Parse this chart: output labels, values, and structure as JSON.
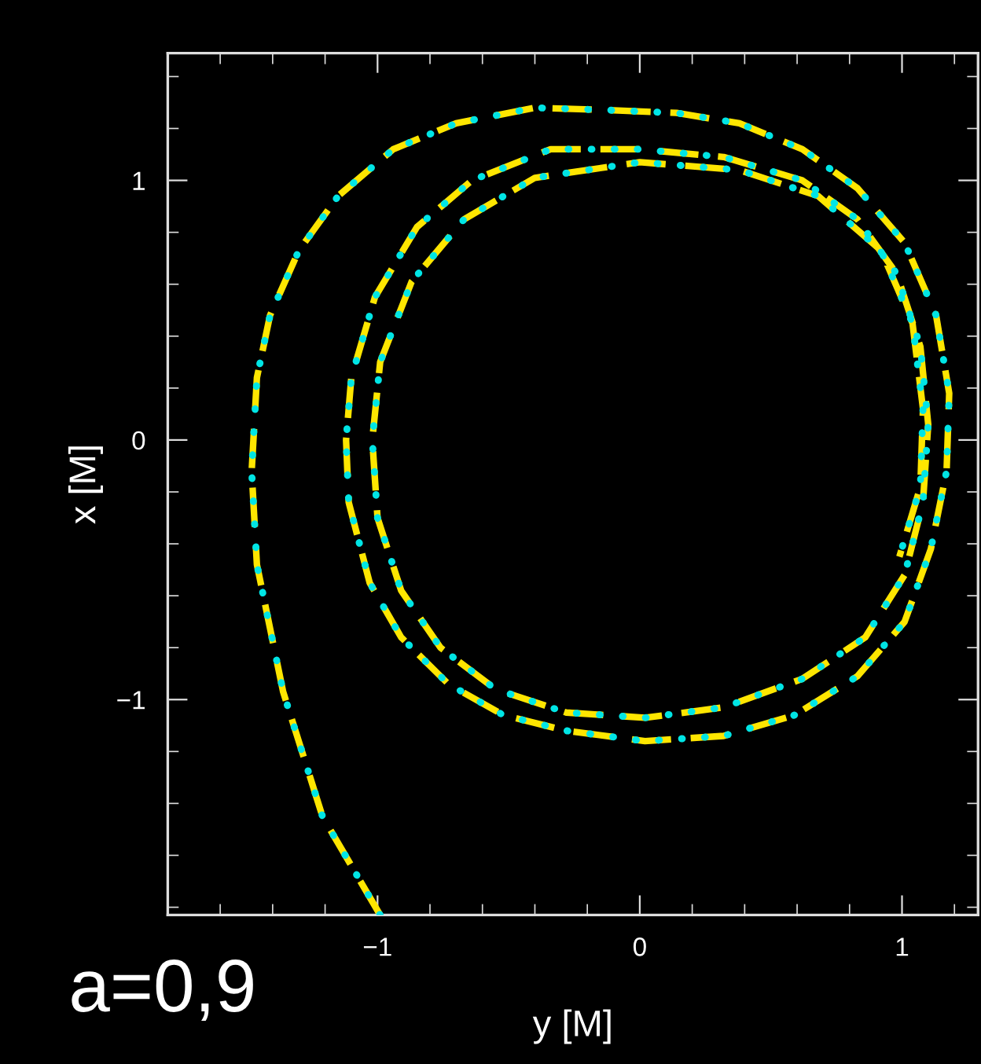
{
  "chart_data": {
    "type": "line",
    "xlabel": "y [M]",
    "ylabel": "x [M]",
    "annotations": [
      "a=0,9"
    ],
    "xlim": [
      -1.8,
      1.29
    ],
    "ylim": [
      -1.83,
      1.49
    ],
    "xticks": [
      {
        "value": -1.8,
        "label": null
      },
      {
        "value": -1.6,
        "label": null
      },
      {
        "value": -1.4,
        "label": null
      },
      {
        "value": -1.2,
        "label": null
      },
      -1,
      {
        "value": -0.8,
        "label": null
      },
      {
        "value": -0.6,
        "label": null
      },
      {
        "value": -0.4,
        "label": null
      },
      {
        "value": -0.2,
        "label": null
      },
      0,
      {
        "value": 0.2,
        "label": null
      },
      {
        "value": 0.4,
        "label": null
      },
      {
        "value": 0.6,
        "label": null
      },
      {
        "value": 0.8,
        "label": null
      },
      1,
      {
        "value": 1.2,
        "label": null
      }
    ],
    "yticks": [
      {
        "value": -1.8,
        "label": null
      },
      {
        "value": -1.6,
        "label": null
      },
      {
        "value": -1.4,
        "label": null
      },
      {
        "value": -1.2,
        "label": null
      },
      -1,
      {
        "value": -0.8,
        "label": null
      },
      {
        "value": -0.6,
        "label": null
      },
      {
        "value": -0.4,
        "label": null
      },
      {
        "value": -0.2,
        "label": null
      },
      0,
      {
        "value": 0.2,
        "label": null
      },
      {
        "value": 0.4,
        "label": null
      },
      {
        "value": 0.6,
        "label": null
      },
      {
        "value": 0.8,
        "label": null
      },
      1,
      {
        "value": 1.2,
        "label": null
      },
      {
        "value": 1.4,
        "label": null
      }
    ],
    "marker": "none",
    "series": [
      {
        "color": "#ffe600",
        "line_style": "dashed",
        "x": [
          -0.99,
          -1.21,
          -1.36,
          -1.46,
          -1.48,
          -1.46,
          -1.41,
          -1.3,
          -1.15,
          -0.94,
          -0.7,
          -0.4,
          -0.1,
          0.14,
          0.38,
          0.62,
          0.83,
          1.01,
          1.13,
          1.18,
          1.17,
          1.11,
          1.01,
          0.83,
          0.59,
          0.32,
          0.02,
          -0.28,
          -0.52,
          -0.73,
          -0.91,
          -1.03,
          -1.11,
          -1.12,
          -1.1,
          -1.01,
          -0.85,
          -0.64,
          -0.34,
          0,
          0.32,
          0.62,
          0.83,
          0.98,
          1.07,
          1.1,
          1.08,
          1.01,
          0.86,
          0.62,
          0.32,
          0.02,
          -0.28,
          -0.55,
          -0.76,
          -0.91,
          -1.0,
          -1.02,
          -0.99,
          -0.87,
          -0.67,
          -0.4,
          0,
          0.38,
          0.68,
          0.92,
          1.04,
          1.08,
          1.07,
          0.99
        ],
        "values": [
          -1.83,
          -1.45,
          -0.97,
          -0.48,
          -0.12,
          0.24,
          0.48,
          0.73,
          0.94,
          1.12,
          1.22,
          1.28,
          1.27,
          1.26,
          1.22,
          1.12,
          0.97,
          0.76,
          0.48,
          0.18,
          -0.12,
          -0.42,
          -0.7,
          -0.91,
          -1.06,
          -1.14,
          -1.16,
          -1.12,
          -1.06,
          -0.94,
          -0.76,
          -0.55,
          -0.24,
          0,
          0.24,
          0.55,
          0.82,
          1.0,
          1.12,
          1.12,
          1.09,
          1.0,
          0.85,
          0.64,
          0.36,
          0.06,
          -0.24,
          -0.52,
          -0.76,
          -0.92,
          -1.03,
          -1.07,
          -1.05,
          -0.96,
          -0.8,
          -0.58,
          -0.3,
          0,
          0.3,
          0.61,
          0.85,
          1.01,
          1.07,
          1.04,
          0.94,
          0.73,
          0.45,
          0.12,
          -0.18,
          -0.45
        ]
      },
      {
        "color": "#00e5e5",
        "line_style": "dotted",
        "x": [
          -0.99,
          -1.21,
          -1.36,
          -1.46,
          -1.48,
          -1.46,
          -1.41,
          -1.3,
          -1.15,
          -0.94,
          -0.7,
          -0.4,
          -0.1,
          0.14,
          0.38,
          0.62,
          0.83,
          1.01,
          1.13,
          1.18,
          1.17,
          1.11,
          1.01,
          0.83,
          0.59,
          0.32,
          0.02,
          -0.28,
          -0.52,
          -0.73,
          -0.91,
          -1.03,
          -1.11,
          -1.12,
          -1.1,
          -1.01,
          -0.85,
          -0.64,
          -0.34,
          0,
          0.32,
          0.62,
          0.83,
          0.98,
          1.07,
          1.1,
          1.08,
          1.01,
          0.86,
          0.62,
          0.32,
          0.02,
          -0.28,
          -0.55,
          -0.76,
          -0.91,
          -1.0,
          -1.02,
          -0.99,
          -0.87,
          -0.67,
          -0.4,
          0,
          0.38,
          0.68,
          0.92,
          1.04,
          1.08,
          1.07,
          0.99
        ],
        "values": [
          -1.83,
          -1.45,
          -0.97,
          -0.48,
          -0.12,
          0.24,
          0.48,
          0.73,
          0.94,
          1.12,
          1.22,
          1.28,
          1.27,
          1.26,
          1.22,
          1.12,
          0.97,
          0.76,
          0.48,
          0.18,
          -0.12,
          -0.42,
          -0.7,
          -0.91,
          -1.06,
          -1.14,
          -1.16,
          -1.12,
          -1.06,
          -0.94,
          -0.76,
          -0.55,
          -0.24,
          0,
          0.24,
          0.55,
          0.82,
          1.0,
          1.12,
          1.12,
          1.09,
          1.0,
          0.85,
          0.64,
          0.36,
          0.06,
          -0.24,
          -0.52,
          -0.76,
          -0.92,
          -1.03,
          -1.07,
          -1.05,
          -0.96,
          -0.8,
          -0.58,
          -0.3,
          0,
          0.3,
          0.61,
          0.85,
          1.01,
          1.07,
          1.04,
          0.94,
          0.73,
          0.45,
          0.12,
          -0.18,
          -0.45
        ]
      }
    ]
  }
}
